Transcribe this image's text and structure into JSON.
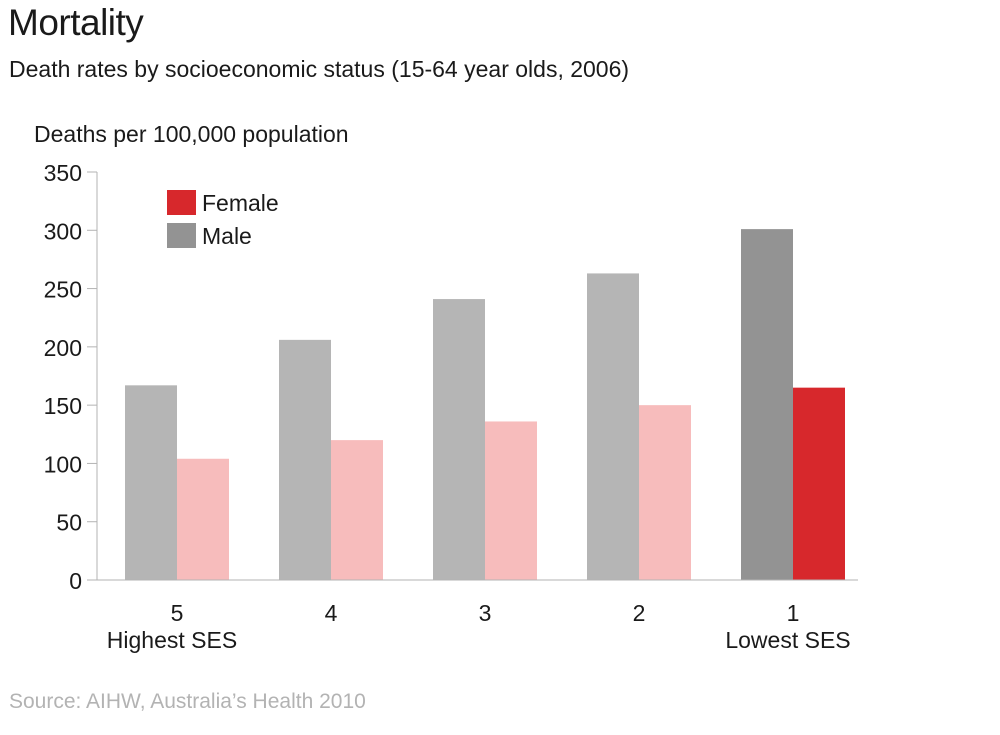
{
  "header": {
    "title": "Mortality",
    "subtitle": "Death rates by socioeconomic status (15-64 year olds, 2006)"
  },
  "footer": {
    "source": "Source: AIHW, Australia’s Health 2010"
  },
  "chart_data": {
    "type": "bar",
    "title": "Mortality",
    "subtitle": "Death rates by socioeconomic status (15-64 year olds, 2006)",
    "ylabel": "Deaths per 100,000 population",
    "xlabel": "",
    "ylim": [
      0,
      350
    ],
    "yticks": [
      0,
      50,
      100,
      150,
      200,
      250,
      300,
      350
    ],
    "categories": [
      "5",
      "4",
      "3",
      "2",
      "1"
    ],
    "category_sublabels": [
      "Highest SES",
      "",
      "",
      "",
      "Lowest SES"
    ],
    "series": [
      {
        "name": "Male",
        "values": [
          167,
          206,
          241,
          263,
          301
        ],
        "colors": [
          "#b5b5b5",
          "#b5b5b5",
          "#b5b5b5",
          "#b5b5b5",
          "#939393"
        ]
      },
      {
        "name": "Female",
        "values": [
          104,
          120,
          136,
          150,
          165
        ],
        "colors": [
          "#f7bcbc",
          "#f7bcbc",
          "#f7bcbc",
          "#f7bcbc",
          "#d7282c"
        ]
      }
    ],
    "legend": {
      "position": "top-left",
      "entries": [
        {
          "name": "Female",
          "color": "#d7282c"
        },
        {
          "name": "Male",
          "color": "#939393"
        }
      ]
    },
    "grid": false,
    "axis_color": "#b3b3b3"
  }
}
